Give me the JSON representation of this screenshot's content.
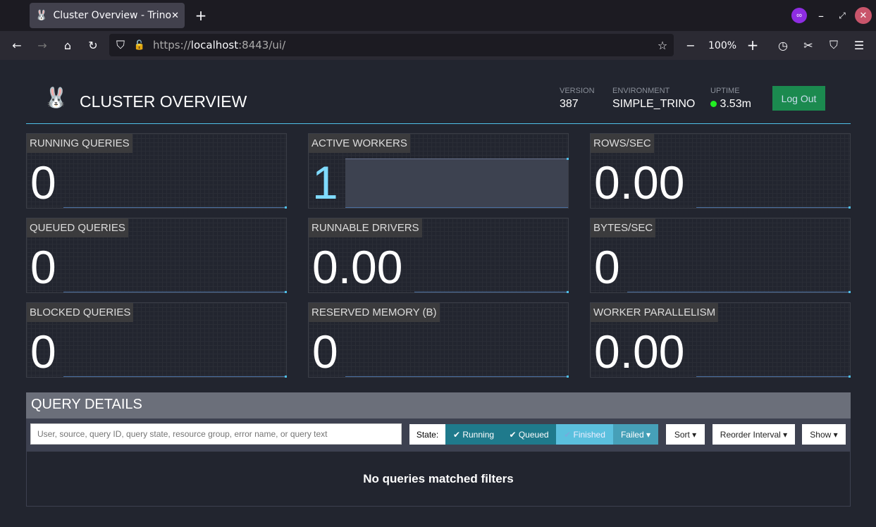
{
  "browser": {
    "tab_title": "Cluster Overview - Trino",
    "url_scheme": "https://",
    "url_host": "localhost",
    "url_rest": ":8443/ui/",
    "zoom": "100%"
  },
  "header": {
    "title": "CLUSTER OVERVIEW",
    "version_label": "VERSION",
    "version": "387",
    "environment_label": "ENVIRONMENT",
    "environment": "SIMPLE_TRINO",
    "uptime_label": "UPTIME",
    "uptime": "3.53m",
    "logout": "Log Out",
    "status_color": "#22ee22"
  },
  "tiles": [
    {
      "label": "RUNNING QUERIES",
      "value": "0"
    },
    {
      "label": "ACTIVE WORKERS",
      "value": "1"
    },
    {
      "label": "ROWS/SEC",
      "value": "0.00"
    },
    {
      "label": "QUEUED QUERIES",
      "value": "0"
    },
    {
      "label": "RUNNABLE DRIVERS",
      "value": "0.00"
    },
    {
      "label": "BYTES/SEC",
      "value": "0"
    },
    {
      "label": "BLOCKED QUERIES",
      "value": "0"
    },
    {
      "label": "RESERVED MEMORY (B)",
      "value": "0"
    },
    {
      "label": "WORKER PARALLELISM",
      "value": "0.00"
    }
  ],
  "query_details": {
    "title": "QUERY DETAILS",
    "search_placeholder": "User, source, query ID, query state, resource group, error name, or query text",
    "state_label": "State:",
    "running": "Running",
    "queued": "Queued",
    "finished": "Finished",
    "failed": "Failed",
    "sort": "Sort",
    "reorder": "Reorder Interval",
    "show": "Show",
    "empty": "No queries matched filters"
  }
}
